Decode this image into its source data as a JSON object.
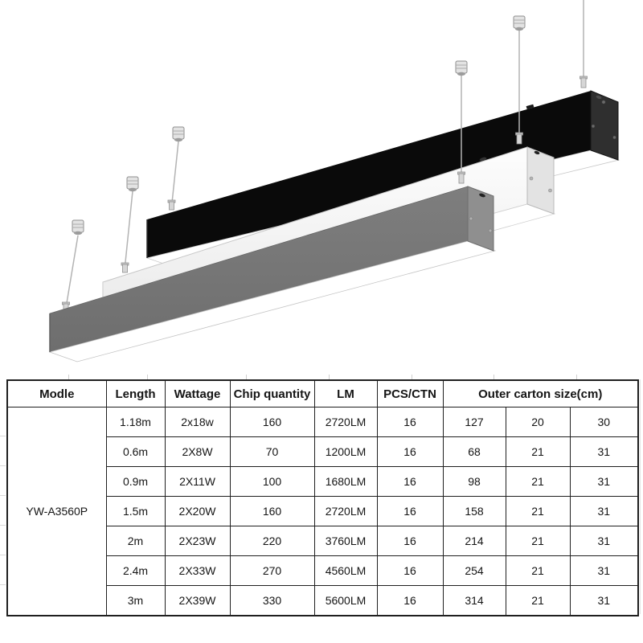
{
  "colors": {
    "fixture_black": "#0a0a0a",
    "fixture_black_cap": "#2f2f2f",
    "fixture_white": "#f6f6f6",
    "fixture_white_cap": "#e3e3e3",
    "fixture_gray": "#767676",
    "fixture_gray_cap": "#8f8f8f",
    "diffuser_white": "#ffffff",
    "cable_gray": "#b3b3b3",
    "table_border": "#1f1f1f"
  },
  "table": {
    "headers": [
      "Modle",
      "Length",
      "Wattage",
      "Chip quantity",
      "LM",
      "PCS/CTN",
      "Outer carton size(cm)"
    ],
    "model": "YW-A3560P",
    "rows": [
      {
        "length": "1.18m",
        "wattage": "2x18w",
        "chip_quantity": "160",
        "lm": "2720LM",
        "pcs_ctn": "16",
        "carton": [
          "127",
          "20",
          "30"
        ]
      },
      {
        "length": "0.6m",
        "wattage": "2X8W",
        "chip_quantity": "70",
        "lm": "1200LM",
        "pcs_ctn": "16",
        "carton": [
          "68",
          "21",
          "31"
        ]
      },
      {
        "length": "0.9m",
        "wattage": "2X11W",
        "chip_quantity": "100",
        "lm": "1680LM",
        "pcs_ctn": "16",
        "carton": [
          "98",
          "21",
          "31"
        ]
      },
      {
        "length": "1.5m",
        "wattage": "2X20W",
        "chip_quantity": "160",
        "lm": "2720LM",
        "pcs_ctn": "16",
        "carton": [
          "158",
          "21",
          "31"
        ]
      },
      {
        "length": "2m",
        "wattage": "2X23W",
        "chip_quantity": "220",
        "lm": "3760LM",
        "pcs_ctn": "16",
        "carton": [
          "214",
          "21",
          "31"
        ]
      },
      {
        "length": "2.4m",
        "wattage": "2X33W",
        "chip_quantity": "270",
        "lm": "4560LM",
        "pcs_ctn": "16",
        "carton": [
          "254",
          "21",
          "31"
        ]
      },
      {
        "length": "3m",
        "wattage": "2X39W",
        "chip_quantity": "330",
        "lm": "5600LM",
        "pcs_ctn": "16",
        "carton": [
          "314",
          "21",
          "31"
        ]
      }
    ]
  }
}
